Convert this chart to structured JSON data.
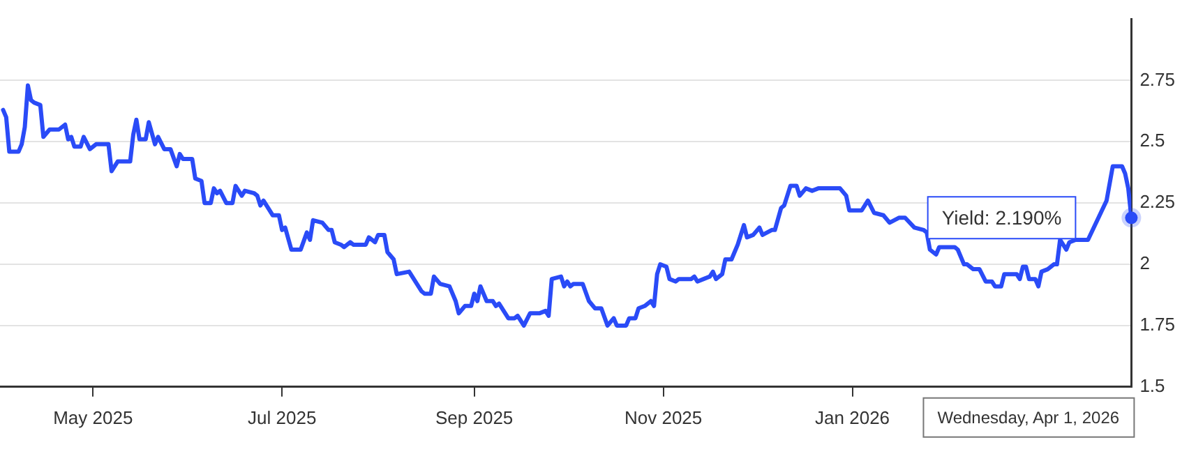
{
  "chart_data": {
    "type": "line",
    "color": "#2a4bf7",
    "marker": "none",
    "line_style": "solid",
    "legend": false,
    "grid": "y",
    "xlim": [
      "2025-04-01",
      "2026-04-01"
    ],
    "xticks": [
      {
        "value": "2025-05",
        "label": "May 2025"
      },
      {
        "value": "2025-07",
        "label": "Jul 2025"
      },
      {
        "value": "2025-09",
        "label": "Sep 2025"
      },
      {
        "value": "2025-11",
        "label": "Nov 2025"
      },
      {
        "value": "2026-01",
        "label": "Jan 2026"
      }
    ],
    "ylim": [
      1.5,
      3
    ],
    "yticks": [
      1.5,
      1.75,
      2,
      2.25,
      2.5,
      2.75
    ],
    "x": [
      "2025-04-02",
      "2025-04-03",
      "2025-04-04",
      "2025-04-07",
      "2025-04-08",
      "2025-04-09",
      "2025-04-10",
      "2025-04-11",
      "2025-04-12",
      "2025-04-14",
      "2025-04-15",
      "2025-04-17",
      "2025-04-20",
      "2025-04-22",
      "2025-04-23",
      "2025-04-24",
      "2025-04-25",
      "2025-04-27",
      "2025-04-28",
      "2025-04-30",
      "2025-05-02",
      "2025-05-06",
      "2025-05-07",
      "2025-05-09",
      "2025-05-13",
      "2025-05-14",
      "2025-05-15",
      "2025-05-16",
      "2025-05-18",
      "2025-05-19",
      "2025-05-21",
      "2025-05-22",
      "2025-05-24",
      "2025-05-26",
      "2025-05-28",
      "2025-05-29",
      "2025-05-30",
      "2025-06-02",
      "2025-06-03",
      "2025-06-05",
      "2025-06-06",
      "2025-06-08",
      "2025-06-09",
      "2025-06-10",
      "2025-06-11",
      "2025-06-13",
      "2025-06-15",
      "2025-06-16",
      "2025-06-18",
      "2025-06-19",
      "2025-06-22",
      "2025-06-23",
      "2025-06-24",
      "2025-06-25",
      "2025-06-28",
      "2025-06-30",
      "2025-07-01",
      "2025-07-02",
      "2025-07-04",
      "2025-07-07",
      "2025-07-09",
      "2025-07-10",
      "2025-07-11",
      "2025-07-14",
      "2025-07-16",
      "2025-07-17",
      "2025-07-18",
      "2025-07-20",
      "2025-07-21",
      "2025-07-23",
      "2025-07-24",
      "2025-07-28",
      "2025-07-29",
      "2025-07-31",
      "2025-08-01",
      "2025-08-03",
      "2025-08-04",
      "2025-08-06",
      "2025-08-07",
      "2025-08-11",
      "2025-08-12",
      "2025-08-15",
      "2025-08-16",
      "2025-08-18",
      "2025-08-19",
      "2025-08-21",
      "2025-08-24",
      "2025-08-26",
      "2025-08-27",
      "2025-08-29",
      "2025-08-31",
      "2025-09-01",
      "2025-09-02",
      "2025-09-03",
      "2025-09-05",
      "2025-09-07",
      "2025-09-08",
      "2025-09-09",
      "2025-09-12",
      "2025-09-14",
      "2025-09-15",
      "2025-09-17",
      "2025-09-19",
      "2025-09-22",
      "2025-09-24",
      "2025-09-25",
      "2025-09-26",
      "2025-09-29",
      "2025-09-30",
      "2025-10-01",
      "2025-10-02",
      "2025-10-03",
      "2025-10-06",
      "2025-10-08",
      "2025-10-10",
      "2025-10-12",
      "2025-10-14",
      "2025-10-16",
      "2025-10-17",
      "2025-10-20",
      "2025-10-21",
      "2025-10-23",
      "2025-10-24",
      "2025-10-26",
      "2025-10-28",
      "2025-10-29",
      "2025-10-30",
      "2025-10-31",
      "2025-11-02",
      "2025-11-03",
      "2025-11-05",
      "2025-11-06",
      "2025-11-10",
      "2025-11-11",
      "2025-11-12",
      "2025-11-14",
      "2025-11-16",
      "2025-11-17",
      "2025-11-18",
      "2025-11-20",
      "2025-11-21",
      "2025-11-23",
      "2025-11-25",
      "2025-11-27",
      "2025-11-28",
      "2025-11-30",
      "2025-12-02",
      "2025-12-03",
      "2025-12-06",
      "2025-12-07",
      "2025-12-09",
      "2025-12-10",
      "2025-12-12",
      "2025-12-14",
      "2025-12-15",
      "2025-12-17",
      "2025-12-19",
      "2025-12-21",
      "2025-12-22",
      "2025-12-24",
      "2025-12-28",
      "2025-12-30",
      "2025-12-31",
      "2026-01-04",
      "2026-01-06",
      "2026-01-08",
      "2026-01-11",
      "2026-01-13",
      "2026-01-16",
      "2026-01-18",
      "2026-01-21",
      "2026-01-24",
      "2026-01-25",
      "2026-01-26",
      "2026-01-28",
      "2026-01-29",
      "2026-01-31",
      "2026-02-03",
      "2026-02-04",
      "2026-02-06",
      "2026-02-07",
      "2026-02-09",
      "2026-02-11",
      "2026-02-13",
      "2026-02-15",
      "2026-02-16",
      "2026-02-18",
      "2026-02-19",
      "2026-02-23",
      "2026-02-24",
      "2026-02-25",
      "2026-02-26",
      "2026-02-27",
      "2026-03-01",
      "2026-03-02",
      "2026-03-03",
      "2026-03-05",
      "2026-03-07",
      "2026-03-08",
      "2026-03-09",
      "2026-03-11",
      "2026-03-12",
      "2026-03-14",
      "2026-03-18",
      "2026-03-24",
      "2026-03-26",
      "2026-03-29",
      "2026-03-30",
      "2026-03-31",
      "2026-04-01"
    ],
    "values": [
      2.63,
      2.6,
      2.46,
      2.46,
      2.49,
      2.56,
      2.73,
      2.67,
      2.66,
      2.65,
      2.52,
      2.55,
      2.55,
      2.57,
      2.51,
      2.52,
      2.48,
      2.48,
      2.52,
      2.47,
      2.49,
      2.49,
      2.38,
      2.42,
      2.42,
      2.53,
      2.59,
      2.51,
      2.51,
      2.58,
      2.49,
      2.52,
      2.47,
      2.47,
      2.4,
      2.45,
      2.43,
      2.43,
      2.35,
      2.34,
      2.25,
      2.25,
      2.31,
      2.29,
      2.3,
      2.25,
      2.25,
      2.32,
      2.28,
      2.3,
      2.29,
      2.28,
      2.24,
      2.26,
      2.2,
      2.2,
      2.14,
      2.15,
      2.06,
      2.06,
      2.13,
      2.1,
      2.18,
      2.17,
      2.14,
      2.14,
      2.09,
      2.08,
      2.07,
      2.09,
      2.08,
      2.08,
      2.11,
      2.09,
      2.12,
      2.12,
      2.05,
      2.02,
      1.96,
      1.97,
      1.95,
      1.89,
      1.88,
      1.88,
      1.95,
      1.92,
      1.91,
      1.85,
      1.8,
      1.83,
      1.83,
      1.88,
      1.85,
      1.91,
      1.85,
      1.85,
      1.83,
      1.84,
      1.78,
      1.78,
      1.79,
      1.75,
      1.8,
      1.8,
      1.81,
      1.79,
      1.94,
      1.95,
      1.91,
      1.93,
      1.91,
      1.92,
      1.92,
      1.85,
      1.82,
      1.82,
      1.75,
      1.78,
      1.75,
      1.75,
      1.78,
      1.78,
      1.82,
      1.83,
      1.85,
      1.83,
      1.96,
      2.0,
      1.99,
      1.94,
      1.93,
      1.94,
      1.94,
      1.95,
      1.93,
      1.94,
      1.95,
      1.97,
      1.94,
      1.96,
      2.02,
      2.02,
      2.08,
      2.16,
      2.11,
      2.12,
      2.15,
      2.12,
      2.14,
      2.14,
      2.23,
      2.24,
      2.32,
      2.32,
      2.28,
      2.31,
      2.3,
      2.31,
      2.31,
      2.31,
      2.31,
      2.28,
      2.22,
      2.22,
      2.26,
      2.21,
      2.2,
      2.17,
      2.19,
      2.19,
      2.15,
      2.14,
      2.13,
      2.06,
      2.04,
      2.07,
      2.07,
      2.07,
      2.06,
      2.0,
      2.0,
      1.98,
      1.98,
      1.93,
      1.93,
      1.91,
      1.91,
      1.96,
      1.96,
      1.94,
      1.99,
      1.99,
      1.94,
      1.94,
      1.91,
      1.97,
      1.98,
      2.0,
      2.0,
      2.1,
      2.06,
      2.09,
      2.1,
      2.1,
      2.26,
      2.4,
      2.4,
      2.37,
      2.31,
      2.19
    ],
    "annotations": [
      "Yield: 2.190%",
      "Wednesday, Apr 1, 2026"
    ]
  }
}
